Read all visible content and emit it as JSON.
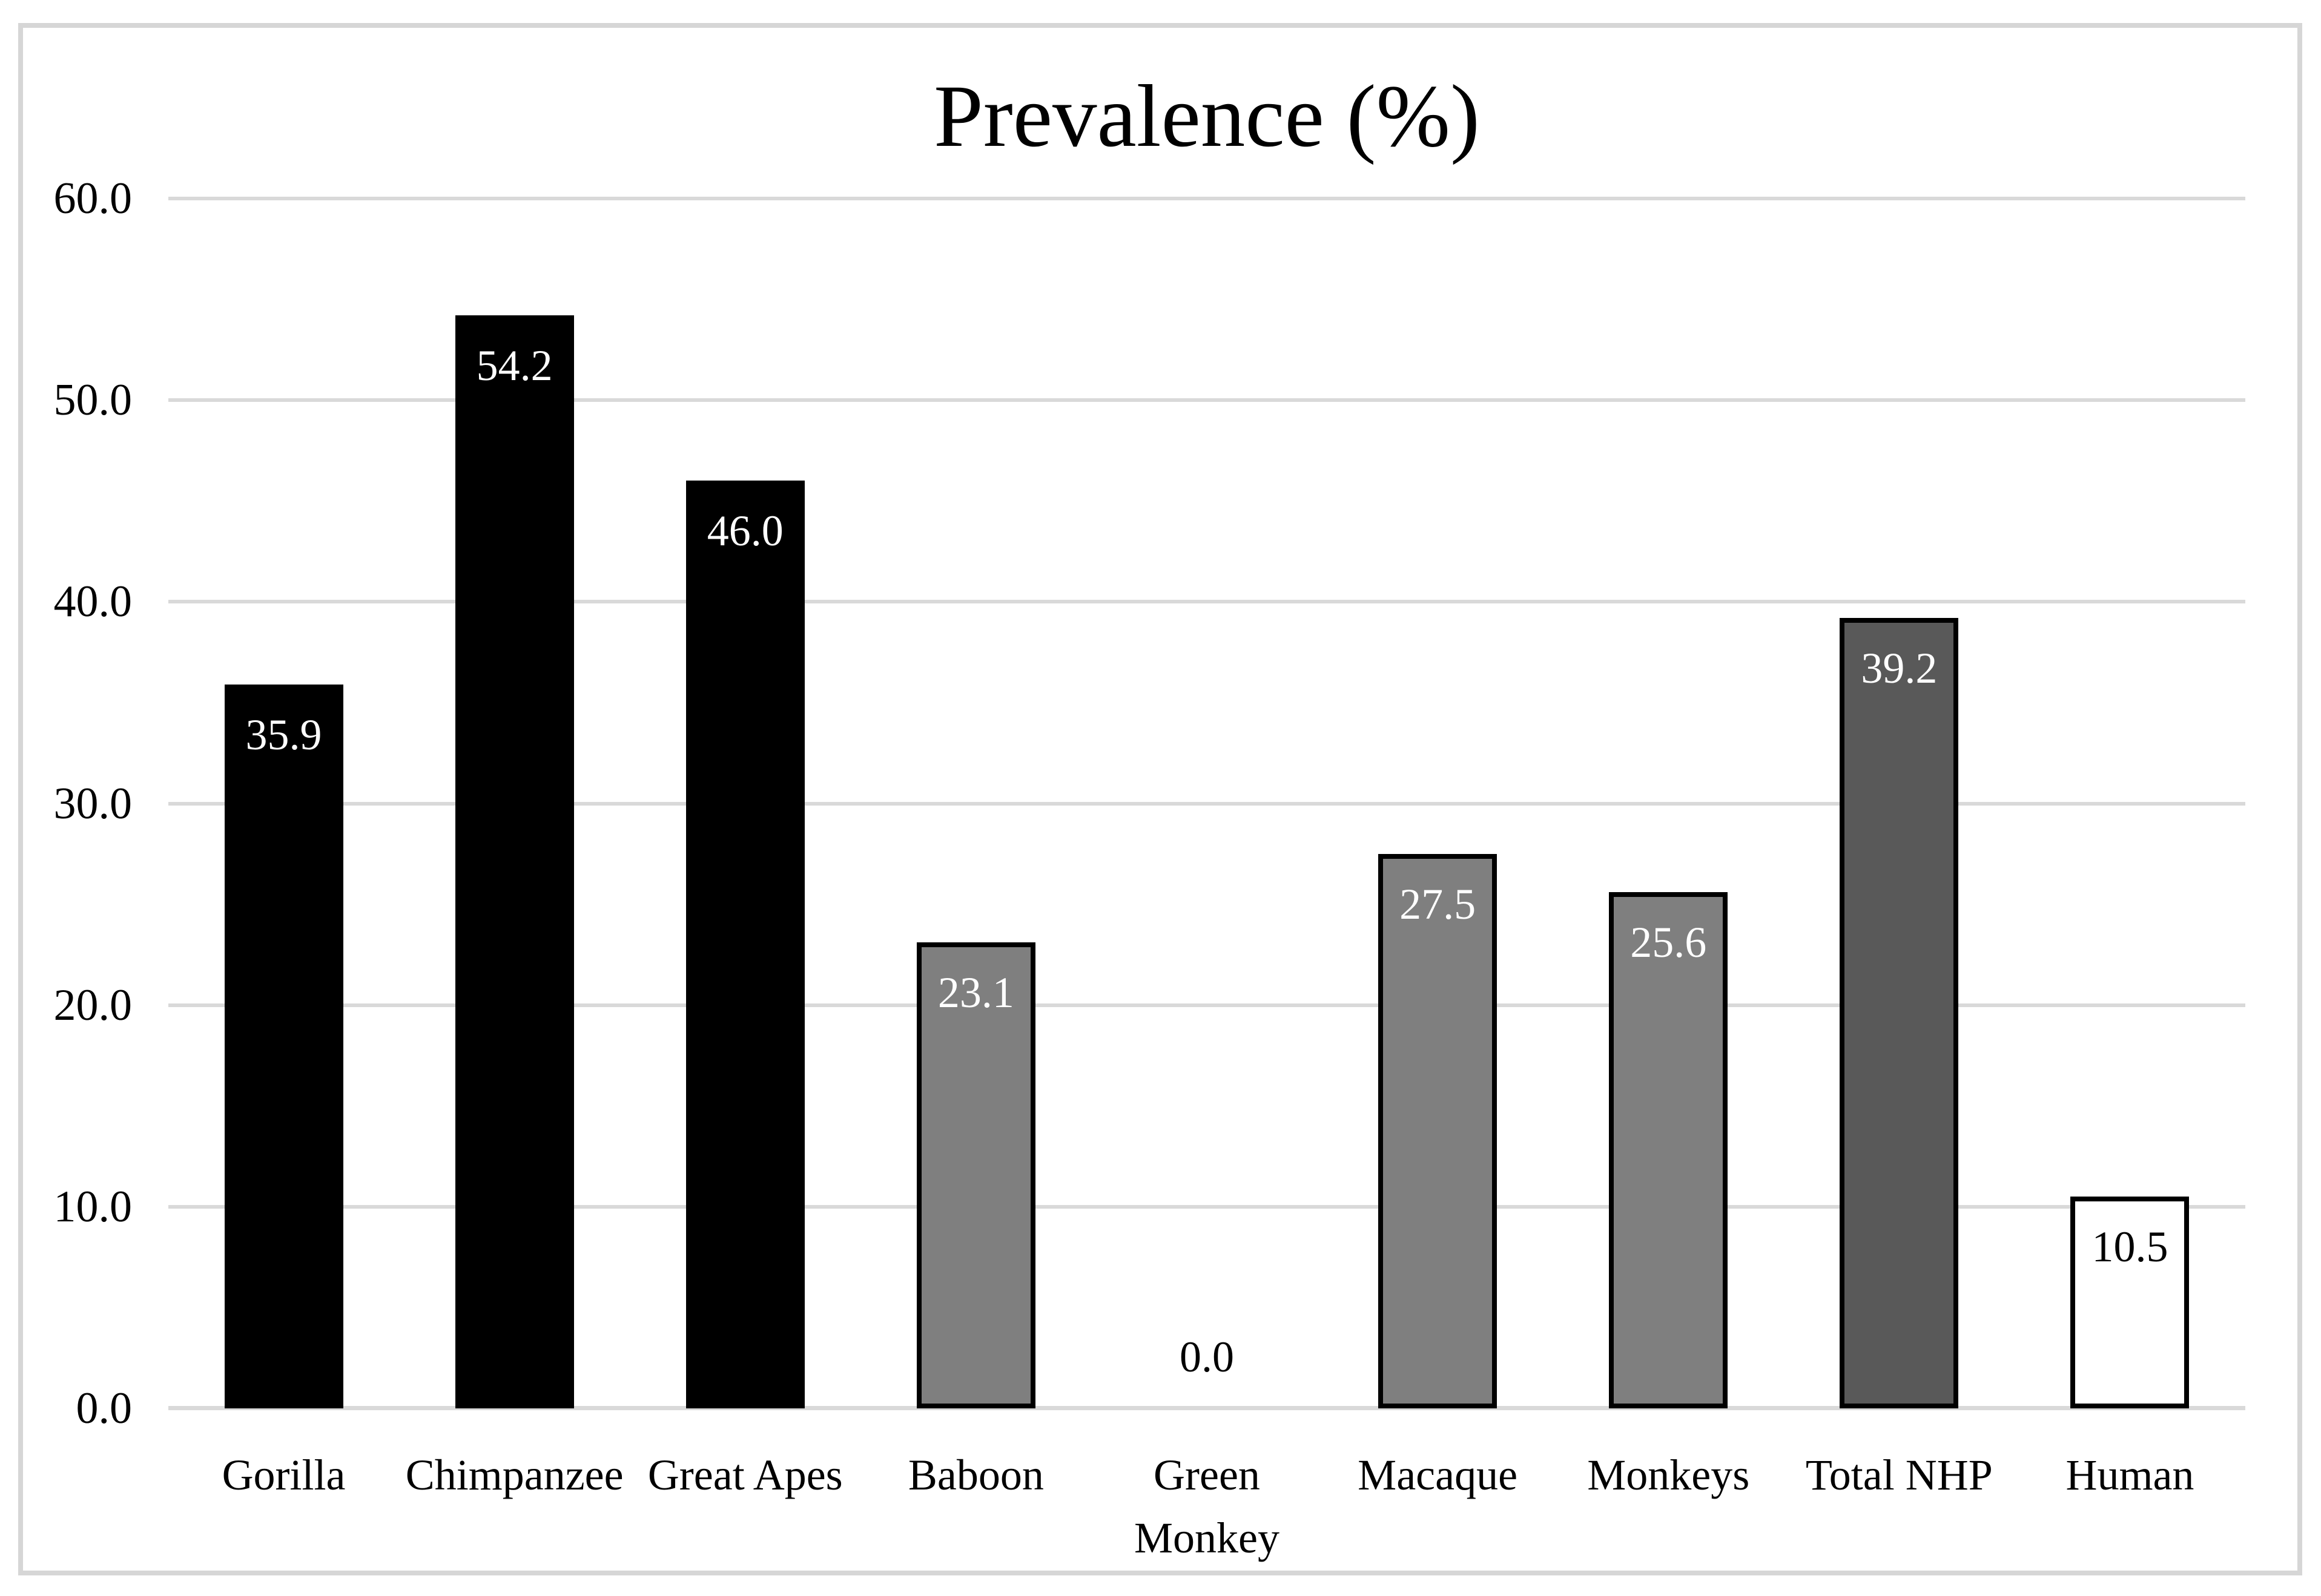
{
  "chart_data": {
    "type": "bar",
    "title": "Prevalence (%)",
    "categories": [
      "Gorilla",
      "Chimpanzee",
      "Great Apes",
      "Baboon",
      "Green Monkey",
      "Macaque",
      "Monkeys",
      "Total NHP",
      "Human"
    ],
    "values": [
      35.9,
      54.2,
      46.0,
      23.1,
      0.0,
      27.5,
      25.6,
      39.2,
      10.5
    ],
    "value_labels": [
      "35.9",
      "54.2",
      "46.0",
      "23.1",
      "0.0",
      "27.5",
      "25.6",
      "39.2",
      "10.5"
    ],
    "bar_fill_colors": [
      "#000000",
      "#000000",
      "#000000",
      "#7f7f7f",
      "none",
      "#7f7f7f",
      "#7f7f7f",
      "#595959",
      "#ffffff"
    ],
    "bar_border_color": "#000000",
    "value_label_colors": [
      "#ffffff",
      "#ffffff",
      "#ffffff",
      "#ffffff",
      "#000000",
      "#ffffff",
      "#ffffff",
      "#ffffff",
      "#000000"
    ],
    "xlabel": "",
    "ylabel": "",
    "ylim": [
      0,
      60
    ],
    "ytick_step": 10,
    "ytick_labels": [
      "0.0",
      "10.0",
      "20.0",
      "30.0",
      "40.0",
      "50.0",
      "60.0"
    ],
    "grid": "horizontal",
    "gridline_color": "#d9d9d9",
    "legend": "none",
    "frame_color": "#d6d6d6",
    "background_color": "#ffffff"
  }
}
